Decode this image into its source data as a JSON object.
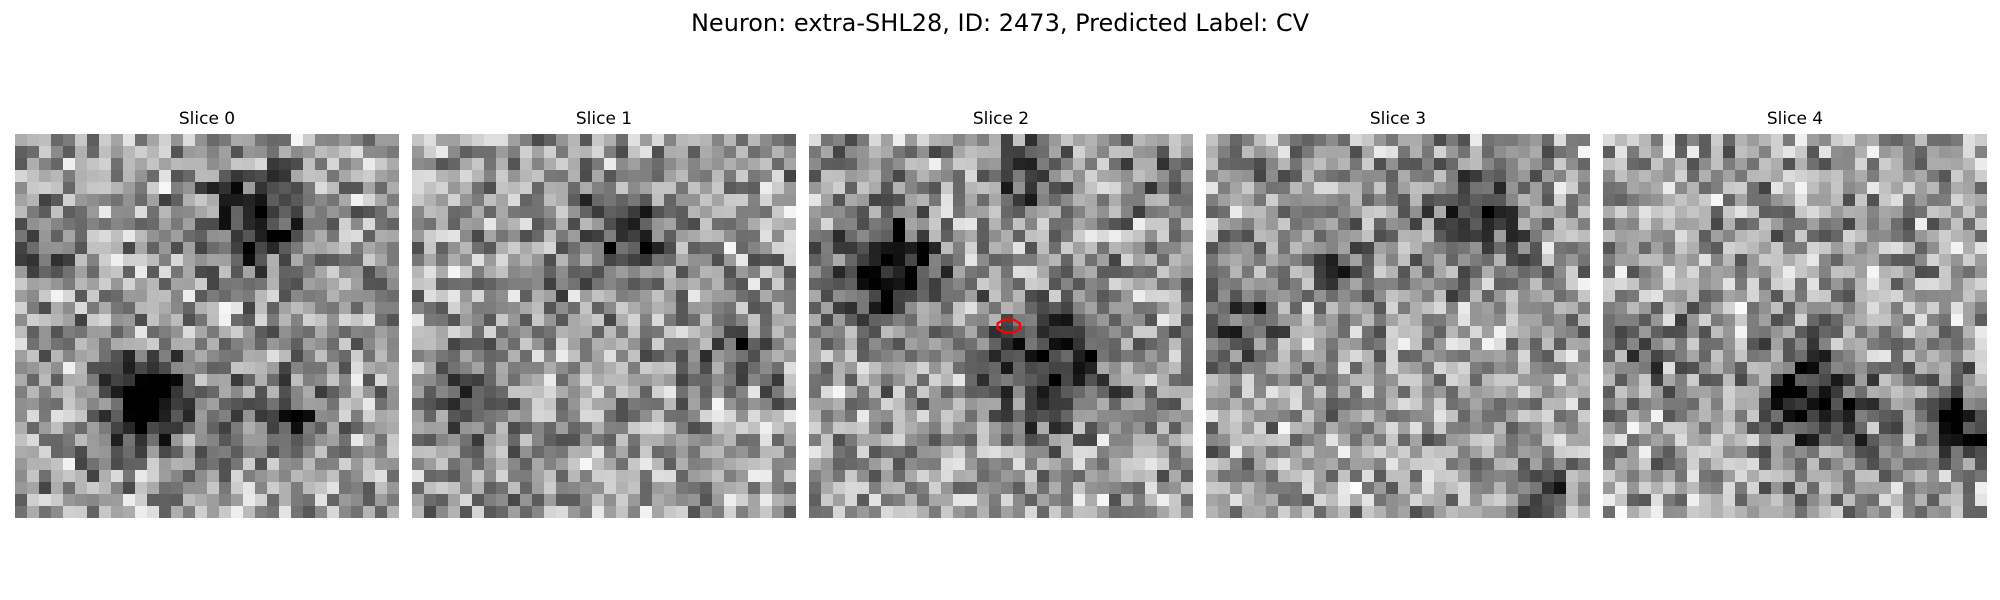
{
  "figure": {
    "title": "Neuron: extra-SHL28, ID: 2473, Predicted Label: CV",
    "grid_size": 32,
    "colormap": "gray",
    "marker_color": "#ff0000",
    "slices": [
      {
        "title": "Slice 0",
        "dark_regions": [
          [
            0.62,
            0.23,
            0.13,
            0.55
          ],
          [
            0.35,
            0.7,
            0.11,
            0.75
          ],
          [
            0.7,
            0.75,
            0.1,
            0.4
          ],
          [
            0.05,
            0.3,
            0.08,
            0.3
          ]
        ]
      },
      {
        "title": "Slice 1",
        "dark_regions": [
          [
            0.55,
            0.28,
            0.14,
            0.4
          ],
          [
            0.12,
            0.7,
            0.12,
            0.25
          ],
          [
            0.85,
            0.55,
            0.1,
            0.3
          ]
        ]
      },
      {
        "title": "Slice 2",
        "dark_regions": [
          [
            0.2,
            0.35,
            0.13,
            0.7
          ],
          [
            0.62,
            0.6,
            0.15,
            0.5
          ],
          [
            0.55,
            0.1,
            0.1,
            0.35
          ],
          [
            0.9,
            0.1,
            0.08,
            0.25
          ]
        ],
        "marker": {
          "x": 0.52,
          "y": 0.5
        }
      },
      {
        "title": "Slice 3",
        "dark_regions": [
          [
            0.7,
            0.22,
            0.12,
            0.5
          ],
          [
            0.1,
            0.5,
            0.1,
            0.4
          ],
          [
            0.35,
            0.35,
            0.08,
            0.3
          ],
          [
            0.88,
            0.95,
            0.07,
            0.5
          ]
        ]
      },
      {
        "title": "Slice 4",
        "dark_regions": [
          [
            0.55,
            0.7,
            0.14,
            0.6
          ],
          [
            0.92,
            0.75,
            0.1,
            0.55
          ],
          [
            0.1,
            0.55,
            0.1,
            0.25
          ]
        ]
      }
    ]
  }
}
